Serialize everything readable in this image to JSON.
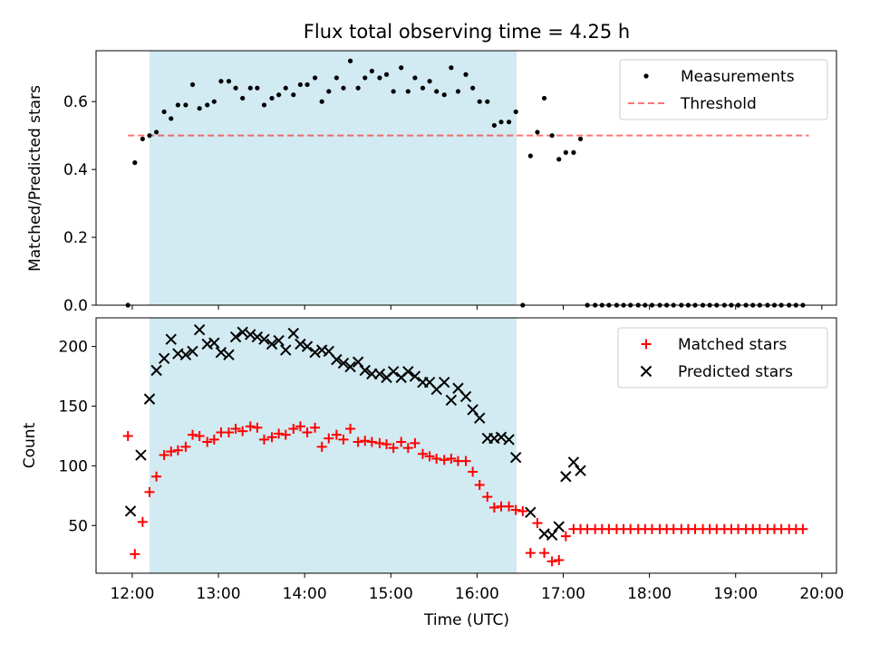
{
  "title": "Flux total observing time = 4.25 h",
  "colors": {
    "highlight": "#add8e6",
    "threshold": "#ff0000",
    "measurements": "#000000",
    "matched": "#ff0000",
    "predicted": "#000000"
  },
  "chart_data": [
    {
      "type": "scatter",
      "ylabel": "Matched/Predicted stars",
      "xlim": [
        11.58,
        20.17
      ],
      "ylim": [
        0,
        0.75
      ],
      "yticks": [
        0,
        0.2,
        0.4,
        0.6
      ],
      "ytick_labels": [
        "0.0",
        "0.2",
        "0.4",
        "0.6"
      ],
      "grid": false,
      "legend_placement": "top-right",
      "legend": [
        "Measurements",
        "Threshold"
      ],
      "highlight_span_x": [
        12.2,
        16.46
      ],
      "threshold": {
        "y": 0.5,
        "x_range": [
          11.95,
          19.85
        ],
        "style": "dashed",
        "name": "Threshold"
      },
      "series": [
        {
          "name": "Measurements",
          "marker": "dot",
          "x": [
            11.95,
            12.03,
            12.12,
            12.2,
            12.28,
            12.37,
            12.45,
            12.53,
            12.62,
            12.7,
            12.78,
            12.87,
            12.95,
            13.03,
            13.12,
            13.2,
            13.28,
            13.37,
            13.45,
            13.53,
            13.62,
            13.7,
            13.78,
            13.87,
            13.95,
            14.03,
            14.12,
            14.2,
            14.28,
            14.37,
            14.45,
            14.53,
            14.62,
            14.7,
            14.78,
            14.87,
            14.95,
            15.03,
            15.12,
            15.2,
            15.28,
            15.37,
            15.45,
            15.53,
            15.62,
            15.7,
            15.78,
            15.87,
            15.95,
            16.03,
            16.12,
            16.2,
            16.28,
            16.37,
            16.45,
            16.53,
            16.62,
            16.7,
            16.78,
            16.87,
            16.95,
            17.03,
            17.12,
            17.2,
            17.28,
            17.37,
            17.45,
            17.53,
            17.62,
            17.7,
            17.78,
            17.87,
            17.95,
            18.03,
            18.12,
            18.2,
            18.28,
            18.37,
            18.45,
            18.53,
            18.62,
            18.7,
            18.78,
            18.87,
            18.95,
            19.03,
            19.12,
            19.2,
            19.28,
            19.37,
            19.45,
            19.53,
            19.62,
            19.7,
            19.78
          ],
          "y": [
            0.0,
            0.42,
            0.49,
            0.5,
            0.51,
            0.57,
            0.55,
            0.59,
            0.59,
            0.65,
            0.58,
            0.59,
            0.6,
            0.66,
            0.66,
            0.64,
            0.61,
            0.64,
            0.64,
            0.59,
            0.61,
            0.62,
            0.64,
            0.62,
            0.65,
            0.65,
            0.67,
            0.6,
            0.63,
            0.67,
            0.64,
            0.72,
            0.64,
            0.67,
            0.69,
            0.67,
            0.68,
            0.63,
            0.7,
            0.63,
            0.67,
            0.64,
            0.66,
            0.63,
            0.62,
            0.7,
            0.63,
            0.68,
            0.64,
            0.6,
            0.6,
            0.53,
            0.54,
            0.54,
            0.57,
            0.0,
            0.44,
            0.51,
            0.61,
            0.5,
            0.43,
            0.45,
            0.45,
            0.49,
            0.0,
            0.0,
            0.0,
            0.0,
            0.0,
            0.0,
            0.0,
            0.0,
            0.0,
            0.0,
            0.0,
            0.0,
            0.0,
            0.0,
            0.0,
            0.0,
            0.0,
            0.0,
            0.0,
            0.0,
            0.0,
            0.0,
            0.0,
            0.0,
            0.0,
            0.0,
            0.0,
            0.0,
            0.0,
            0.0,
            0.0
          ]
        }
      ]
    },
    {
      "type": "scatter",
      "xlabel": "Time (UTC)",
      "ylabel": "Count",
      "xlim": [
        11.58,
        20.17
      ],
      "ylim": [
        10,
        224
      ],
      "xticks": [
        12,
        13,
        14,
        15,
        16,
        17,
        18,
        19,
        20
      ],
      "xtick_labels": [
        "12:00",
        "13:00",
        "14:00",
        "15:00",
        "16:00",
        "17:00",
        "18:00",
        "19:00",
        "20:00"
      ],
      "yticks": [
        50,
        100,
        150,
        200
      ],
      "ytick_labels": [
        "50",
        "100",
        "150",
        "200"
      ],
      "grid": false,
      "legend_placement": "top-right",
      "legend": [
        "Matched stars",
        "Predicted stars"
      ],
      "highlight_span_x": [
        12.2,
        16.46
      ],
      "series": [
        {
          "name": "Matched stars",
          "marker": "plus",
          "x": [
            11.95,
            12.03,
            12.12,
            12.2,
            12.28,
            12.37,
            12.45,
            12.53,
            12.62,
            12.7,
            12.78,
            12.87,
            12.95,
            13.03,
            13.12,
            13.2,
            13.28,
            13.37,
            13.45,
            13.53,
            13.62,
            13.7,
            13.78,
            13.87,
            13.95,
            14.03,
            14.12,
            14.2,
            14.28,
            14.37,
            14.45,
            14.53,
            14.62,
            14.7,
            14.78,
            14.87,
            14.95,
            15.03,
            15.12,
            15.2,
            15.28,
            15.37,
            15.45,
            15.53,
            15.62,
            15.7,
            15.78,
            15.87,
            15.95,
            16.03,
            16.12,
            16.2,
            16.28,
            16.37,
            16.45,
            16.53,
            16.62,
            16.7,
            16.78,
            16.87,
            16.95,
            17.03,
            17.12,
            17.2,
            17.28,
            17.37,
            17.45,
            17.53,
            17.62,
            17.7,
            17.78,
            17.87,
            17.95,
            18.03,
            18.12,
            18.2,
            18.28,
            18.37,
            18.45,
            18.53,
            18.62,
            18.7,
            18.78,
            18.87,
            18.95,
            19.03,
            19.12,
            19.2,
            19.28,
            19.37,
            19.45,
            19.53,
            19.62,
            19.7,
            19.78
          ],
          "y": [
            125,
            26,
            53,
            78,
            91,
            109,
            112,
            113,
            116,
            126,
            125,
            120,
            122,
            128,
            128,
            131,
            129,
            133,
            132,
            122,
            124,
            127,
            126,
            131,
            133,
            128,
            132,
            116,
            123,
            126,
            122,
            131,
            120,
            121,
            120,
            119,
            118,
            115,
            120,
            115,
            119,
            110,
            108,
            106,
            105,
            106,
            104,
            104,
            95,
            84,
            74,
            65,
            66,
            66,
            63,
            62,
            27,
            52,
            27,
            20,
            21,
            41,
            47,
            47,
            47,
            47,
            47,
            47,
            47,
            47,
            47,
            47,
            47,
            47,
            47,
            47,
            47,
            47,
            47,
            47,
            47,
            47,
            47,
            47,
            47,
            47,
            47,
            47,
            47,
            47,
            47,
            47,
            47,
            47,
            47
          ]
        },
        {
          "name": "Predicted stars",
          "marker": "x",
          "x": [
            11.98,
            12.1,
            12.2,
            12.28,
            12.37,
            12.45,
            12.53,
            12.62,
            12.7,
            12.78,
            12.87,
            12.95,
            13.03,
            13.12,
            13.2,
            13.28,
            13.37,
            13.45,
            13.53,
            13.62,
            13.7,
            13.78,
            13.87,
            13.95,
            14.03,
            14.12,
            14.2,
            14.28,
            14.37,
            14.45,
            14.53,
            14.62,
            14.7,
            14.78,
            14.87,
            14.95,
            15.03,
            15.12,
            15.2,
            15.28,
            15.37,
            15.45,
            15.53,
            15.62,
            15.7,
            15.78,
            15.87,
            15.95,
            16.03,
            16.12,
            16.2,
            16.28,
            16.37,
            16.45,
            16.62,
            16.78,
            16.87,
            16.95,
            17.03,
            17.12,
            17.2
          ],
          "y": [
            62,
            109,
            156,
            180,
            190,
            206,
            194,
            193,
            196,
            214,
            202,
            203,
            195,
            193,
            208,
            212,
            210,
            208,
            206,
            202,
            205,
            197,
            211,
            202,
            200,
            195,
            197,
            196,
            189,
            186,
            183,
            187,
            180,
            177,
            177,
            174,
            179,
            174,
            179,
            175,
            170,
            170,
            164,
            170,
            155,
            165,
            158,
            147,
            140,
            123,
            123,
            124,
            122,
            107,
            61,
            43,
            42,
            49,
            91,
            103,
            96
          ]
        }
      ]
    }
  ]
}
